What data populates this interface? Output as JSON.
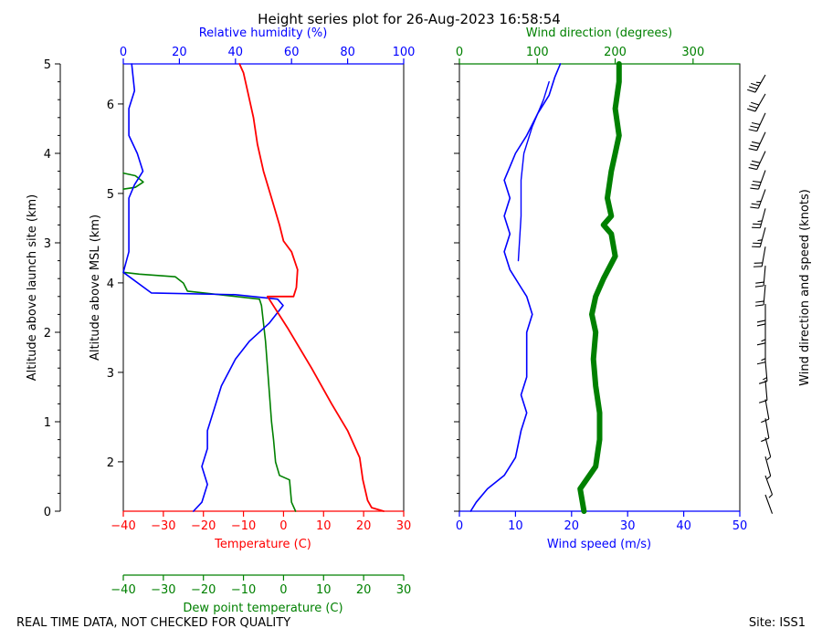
{
  "page": {
    "title": "Height series plot for 26-Aug-2023 16:58:54",
    "footer_left": "REAL TIME DATA, NOT CHECKED FOR QUALITY",
    "footer_right": "Site: ISS1"
  },
  "colors": {
    "temperature": "#ff0000",
    "dewpoint": "#008000",
    "rh": "#0000ff",
    "wspd": "#0000ff",
    "wdir": "#008000",
    "barb": "#000000"
  },
  "chart_data": [
    {
      "type": "line",
      "name": "thermo-panel",
      "axes": {
        "left_outer": {
          "label": "Altitude above launch site (km)",
          "range": [
            0,
            5
          ],
          "ticks": [
            "0",
            "1",
            "2",
            "3",
            "4",
            "5"
          ]
        },
        "left_inner": {
          "label": "Altitude above MSL (km)",
          "range": [
            1.448,
            6.448
          ],
          "ticks": [
            "2",
            "3",
            "4",
            "5",
            "6"
          ]
        },
        "bottom": {
          "label": "Temperature (C)",
          "range": [
            -40,
            30
          ],
          "ticks": [
            "−40",
            "−30",
            "−20",
            "−10",
            "0",
            "10",
            "20",
            "30"
          ]
        },
        "bottom2": {
          "label": "Dew point temperature (C)",
          "range": [
            -40,
            30
          ],
          "ticks": [
            "−40",
            "−30",
            "−20",
            "−10",
            "0",
            "10",
            "20",
            "30"
          ]
        },
        "top": {
          "label": "Relative humidity (%)",
          "range": [
            0,
            100
          ],
          "ticks": [
            "0",
            "20",
            "40",
            "60",
            "80",
            "100"
          ]
        }
      },
      "series": [
        {
          "name": "Temperature",
          "unit": "C",
          "points": [
            [
              25,
              0.0
            ],
            [
              22,
              0.04
            ],
            [
              21,
              0.12
            ],
            [
              19.8,
              0.35
            ],
            [
              19,
              0.6
            ],
            [
              16,
              0.9
            ],
            [
              12,
              1.2
            ],
            [
              7,
              1.6
            ],
            [
              1,
              2.05
            ],
            [
              -4,
              2.4
            ],
            [
              2.5,
              2.4
            ],
            [
              3.2,
              2.5
            ],
            [
              3.5,
              2.7
            ],
            [
              2,
              2.9
            ],
            [
              0,
              3.02
            ],
            [
              -1,
              3.2
            ],
            [
              -3,
              3.5
            ],
            [
              -5,
              3.8
            ],
            [
              -6.5,
              4.1
            ],
            [
              -7.5,
              4.4
            ],
            [
              -9,
              4.7
            ],
            [
              -10,
              4.9
            ],
            [
              -11,
              5.0
            ]
          ]
        },
        {
          "name": "Dew point",
          "unit": "C",
          "points": [
            [
              3,
              0.0
            ],
            [
              2,
              0.1
            ],
            [
              1.5,
              0.35
            ],
            [
              -1,
              0.4
            ],
            [
              -2,
              0.55
            ],
            [
              -2.5,
              0.8
            ],
            [
              -3,
              1.0
            ],
            [
              -3.5,
              1.3
            ],
            [
              -4,
              1.6
            ],
            [
              -4.5,
              1.9
            ],
            [
              -5,
              2.1
            ],
            [
              -5.5,
              2.3
            ],
            [
              -6,
              2.37
            ],
            [
              -24,
              2.46
            ],
            [
              -25,
              2.55
            ],
            [
              -27,
              2.62
            ],
            [
              -36,
              2.65
            ],
            [
              -40,
              2.67
            ]
          ]
        },
        {
          "name": "Dew point (upper)",
          "unit": "C",
          "points": [
            [
              -40,
              3.6
            ],
            [
              -37,
              3.62
            ],
            [
              -35,
              3.68
            ],
            [
              -37,
              3.75
            ],
            [
              -40,
              3.78
            ]
          ]
        },
        {
          "name": "Relative humidity",
          "unit": "%",
          "points": [
            [
              25,
              0.0
            ],
            [
              28,
              0.1
            ],
            [
              30,
              0.3
            ],
            [
              28,
              0.5
            ],
            [
              30,
              0.7
            ],
            [
              30,
              0.9
            ],
            [
              32,
              1.1
            ],
            [
              35,
              1.4
            ],
            [
              40,
              1.7
            ],
            [
              45,
              1.9
            ],
            [
              52,
              2.1
            ],
            [
              57,
              2.3
            ],
            [
              55,
              2.37
            ],
            [
              40,
              2.42
            ],
            [
              10,
              2.44
            ],
            [
              0,
              2.67
            ],
            [
              2,
              2.9
            ],
            [
              2,
              3.2
            ],
            [
              2,
              3.5
            ],
            [
              4,
              3.65
            ],
            [
              7,
              3.8
            ],
            [
              5,
              4.0
            ],
            [
              2,
              4.2
            ],
            [
              2,
              4.5
            ],
            [
              4,
              4.7
            ],
            [
              3,
              5.0
            ]
          ]
        }
      ]
    },
    {
      "type": "line",
      "name": "wind-panel",
      "axes": {
        "bottom": {
          "label": "Wind speed (m/s)",
          "range": [
            0,
            50
          ],
          "ticks": [
            "0",
            "10",
            "20",
            "30",
            "40",
            "50"
          ]
        },
        "top": {
          "label": "Wind direction (degrees)",
          "range": [
            0,
            360
          ],
          "ticks": [
            "0",
            "100",
            "200",
            "300"
          ]
        },
        "right": {
          "label": "Wind direction and speed (knots)"
        }
      },
      "series": [
        {
          "name": "Wind speed",
          "unit": "m/s",
          "points": [
            [
              2,
              0.0
            ],
            [
              3,
              0.1
            ],
            [
              5,
              0.25
            ],
            [
              8,
              0.4
            ],
            [
              10,
              0.6
            ],
            [
              11,
              0.9
            ],
            [
              12,
              1.1
            ],
            [
              11,
              1.3
            ],
            [
              12,
              1.5
            ],
            [
              12,
              1.7
            ],
            [
              12,
              2.0
            ],
            [
              13,
              2.2
            ],
            [
              12,
              2.4
            ],
            [
              11,
              2.5
            ],
            [
              9,
              2.7
            ],
            [
              8,
              2.9
            ],
            [
              9,
              3.1
            ],
            [
              8,
              3.3
            ],
            [
              9,
              3.5
            ],
            [
              8,
              3.7
            ],
            [
              9,
              3.85
            ],
            [
              10,
              4.0
            ],
            [
              12,
              4.2
            ],
            [
              14,
              4.45
            ],
            [
              16,
              4.65
            ],
            [
              17,
              4.85
            ],
            [
              18,
              5.0
            ]
          ]
        },
        {
          "name": "Wind speed (descent)",
          "unit": "m/s",
          "points": [
            [
              10.5,
              2.8
            ],
            [
              11,
              3.3
            ],
            [
              11,
              3.7
            ],
            [
              11.5,
              4.0
            ],
            [
              13,
              4.3
            ],
            [
              15,
              4.6
            ],
            [
              16,
              4.8
            ]
          ]
        },
        {
          "name": "Wind direction",
          "unit": "degrees",
          "points": [
            [
              160,
              0.0
            ],
            [
              155,
              0.25
            ],
            [
              175,
              0.5
            ],
            [
              180,
              0.8
            ],
            [
              180,
              1.1
            ],
            [
              175,
              1.4
            ],
            [
              172,
              1.7
            ],
            [
              175,
              2.0
            ],
            [
              170,
              2.2
            ],
            [
              175,
              2.4
            ],
            [
              185,
              2.6
            ],
            [
              200,
              2.85
            ],
            [
              195,
              3.1
            ],
            [
              185,
              3.2
            ],
            [
              195,
              3.3
            ],
            [
              190,
              3.5
            ],
            [
              195,
              3.8
            ],
            [
              200,
              4.0
            ],
            [
              205,
              4.2
            ],
            [
              200,
              4.5
            ],
            [
              205,
              4.8
            ],
            [
              205,
              5.0
            ]
          ]
        },
        {
          "name": "Wind barbs",
          "unit": "knots",
          "points": [
            [
              160,
              4
            ],
            [
              160,
              5
            ],
            [
              165,
              6
            ],
            [
              165,
              8
            ],
            [
              170,
              10
            ],
            [
              170,
              12
            ],
            [
              175,
              14
            ],
            [
              175,
              15
            ],
            [
              180,
              17
            ],
            [
              180,
              18
            ],
            [
              180,
              20
            ],
            [
              185,
              22
            ],
            [
              185,
              24
            ],
            [
              190,
              24
            ],
            [
              195,
              26
            ],
            [
              195,
              28
            ],
            [
              200,
              28
            ],
            [
              200,
              30
            ],
            [
              205,
              30
            ],
            [
              205,
              32
            ],
            [
              205,
              34
            ],
            [
              210,
              34
            ],
            [
              210,
              35
            ]
          ]
        }
      ]
    }
  ]
}
